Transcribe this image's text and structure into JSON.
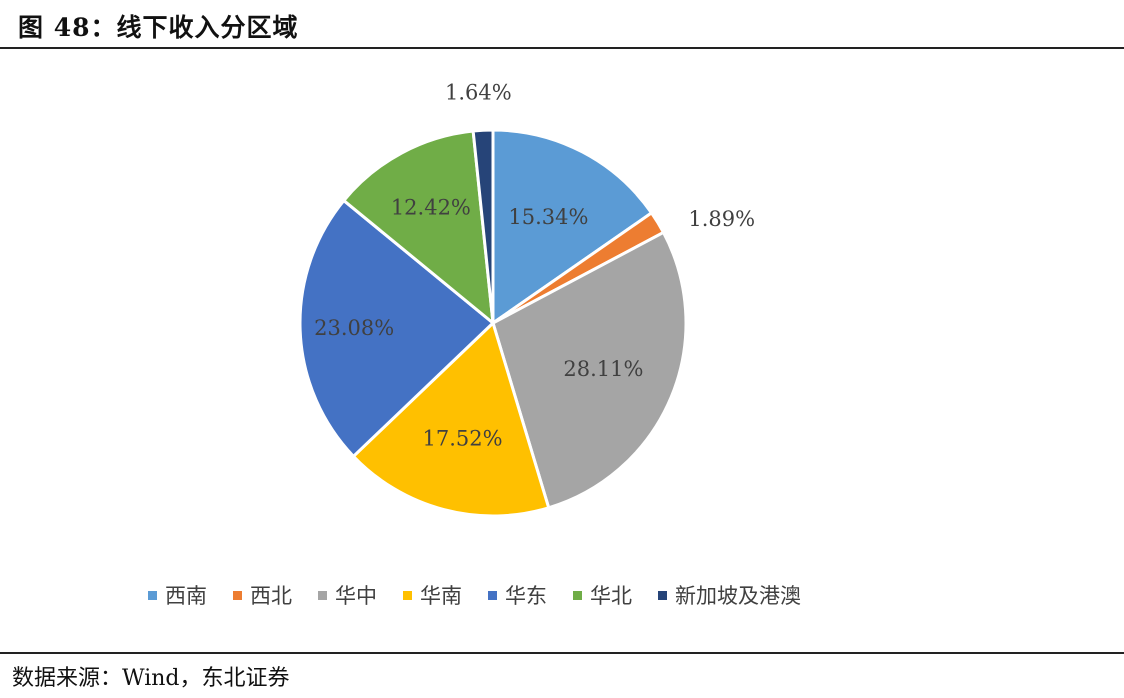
{
  "figure": {
    "title": "图 48：线下收入分区域"
  },
  "source": {
    "text": "数据来源：Wind，东北证券"
  },
  "chart_data": {
    "type": "pie",
    "start_angle_deg": 0,
    "direction": "clockwise",
    "legend_position": "bottom",
    "slices": [
      {
        "name": "西南",
        "value": 15.34,
        "label": "15.34%",
        "color": "#5B9BD5"
      },
      {
        "name": "西北",
        "value": 1.89,
        "label": "1.89%",
        "color": "#ED7D31"
      },
      {
        "name": "华中",
        "value": 28.11,
        "label": "28.11%",
        "color": "#A5A5A5"
      },
      {
        "name": "华南",
        "value": 17.52,
        "label": "17.52%",
        "color": "#FFC000"
      },
      {
        "name": "华东",
        "value": 23.08,
        "label": "23.08%",
        "color": "#4472C4"
      },
      {
        "name": "华北",
        "value": 12.42,
        "label": "12.42%",
        "color": "#70AD47"
      },
      {
        "name": "新加坡及港澳",
        "value": 1.64,
        "label": "1.64%",
        "color": "#264478"
      }
    ]
  }
}
